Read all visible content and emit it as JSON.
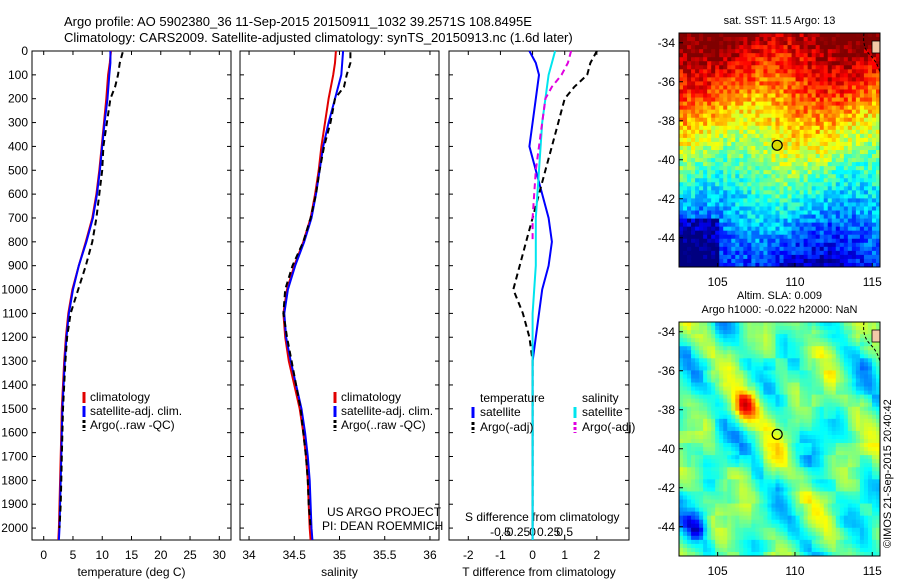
{
  "title_line1": "Argo profile: AO 5902380_36 11-Sep-2015 20150911_1032 39.2571S 108.8495E",
  "title_line2": "Climatology: CARS2009. Satellite-adjusted climatology: synTS_20150913.nc (1.6d later)",
  "colors": {
    "climatology": "#e00000",
    "satellite": "#0000ff",
    "argo": "#000000",
    "cyan": "#00e5ee",
    "magenta": "#e000e0"
  },
  "chart_data": [
    {
      "type": "line",
      "xlabel": "temperature (deg C)",
      "ylabel": "",
      "xlim": [
        -2,
        32
      ],
      "ylim": [
        2050,
        0
      ],
      "xticks": [
        "0",
        "5",
        "10",
        "15",
        "20",
        "25",
        "30"
      ],
      "yticks": [
        "0",
        "100",
        "200",
        "300",
        "400",
        "500",
        "600",
        "700",
        "800",
        "900",
        "1000",
        "1100",
        "1200",
        "1300",
        "1400",
        "1500",
        "1600",
        "1700",
        "1800",
        "1900",
        "2000"
      ],
      "legend": [
        "climatology",
        "satellite-adj. clim.",
        "Argo(..raw -QC)"
      ],
      "legend_position": "lower-center",
      "series": [
        {
          "name": "climatology",
          "style": "solid",
          "color": "#e00000",
          "x": [
            11.5,
            11.3,
            11.0,
            10.7,
            10.3,
            9.9,
            9.5,
            9.0,
            8.3,
            7.2,
            6.0,
            4.9,
            4.2,
            3.8,
            3.5,
            3.3,
            3.1,
            3.0,
            2.9,
            2.8,
            2.7,
            2.6,
            2.5
          ],
          "y": [
            0,
            50,
            100,
            200,
            300,
            400,
            500,
            600,
            700,
            800,
            900,
            1000,
            1100,
            1200,
            1300,
            1400,
            1500,
            1600,
            1700,
            1800,
            1900,
            2000,
            2050
          ]
        },
        {
          "name": "satellite-adj. clim.",
          "style": "solid",
          "color": "#0000ff",
          "x": [
            11.4,
            11.4,
            11.2,
            10.9,
            10.4,
            10.0,
            9.6,
            9.1,
            8.4,
            7.3,
            6.0,
            5.0,
            4.3,
            3.9,
            3.6,
            3.4,
            3.2,
            3.1,
            3.0,
            2.9,
            2.8,
            2.7,
            2.6
          ],
          "y": [
            0,
            50,
            100,
            200,
            300,
            400,
            500,
            600,
            700,
            800,
            900,
            1000,
            1100,
            1200,
            1300,
            1400,
            1500,
            1600,
            1700,
            1800,
            1900,
            2000,
            2050
          ]
        },
        {
          "name": "Argo(..raw -QC)",
          "style": "dashed",
          "color": "#000000",
          "x": [
            13.5,
            13.0,
            12.7,
            12.2,
            11.4,
            10.8,
            10.2,
            10.0,
            9.5,
            9.0,
            8.3,
            7.2,
            5.9,
            4.6,
            4.0,
            3.7,
            3.5,
            3.3,
            3.2,
            3.1,
            3.0,
            2.9,
            2.8,
            2.7
          ],
          "y": [
            5,
            50,
            100,
            150,
            200,
            300,
            400,
            500,
            600,
            700,
            800,
            900,
            1000,
            1100,
            1200,
            1300,
            1400,
            1500,
            1600,
            1700,
            1800,
            1900,
            1950,
            2000
          ]
        }
      ]
    },
    {
      "type": "line",
      "xlabel": "salinity",
      "xlim": [
        33.9,
        36.1
      ],
      "ylim": [
        2050,
        0
      ],
      "xticks": [
        "34",
        "34.5",
        "35",
        "35.5",
        "36"
      ],
      "legend": [
        "climatology",
        "satellite-adj. clim.",
        "Argo(..raw -QC)"
      ],
      "legend_position": "lower-right",
      "annotations": [
        "US ARGO PROJECT",
        "PI: DEAN ROEMMICH"
      ],
      "series": [
        {
          "name": "climatology",
          "style": "solid",
          "color": "#e00000",
          "x": [
            34.96,
            34.95,
            34.93,
            34.88,
            34.84,
            34.8,
            34.77,
            34.73,
            34.68,
            34.6,
            34.5,
            34.42,
            34.38,
            34.4,
            34.44,
            34.5,
            34.56,
            34.6,
            34.63,
            34.65,
            34.66,
            34.67,
            34.68
          ],
          "y": [
            0,
            50,
            100,
            200,
            300,
            400,
            500,
            600,
            700,
            800,
            900,
            1000,
            1100,
            1200,
            1300,
            1400,
            1500,
            1600,
            1700,
            1800,
            1900,
            2000,
            2050
          ]
        },
        {
          "name": "satellite-adj. clim.",
          "style": "solid",
          "color": "#0000ff",
          "x": [
            35.04,
            35.03,
            35.02,
            34.95,
            34.88,
            34.82,
            34.78,
            34.74,
            34.69,
            34.61,
            34.51,
            34.43,
            34.39,
            34.41,
            34.46,
            34.52,
            34.58,
            34.62,
            34.65,
            34.67,
            34.68,
            34.69,
            34.7
          ],
          "y": [
            0,
            50,
            100,
            200,
            300,
            400,
            500,
            600,
            700,
            800,
            900,
            1000,
            1100,
            1200,
            1300,
            1400,
            1500,
            1600,
            1700,
            1800,
            1900,
            2000,
            2050
          ]
        },
        {
          "name": "Argo(..raw -QC)",
          "style": "dashed",
          "color": "#000000",
          "x": [
            35.12,
            35.12,
            35.08,
            35.05,
            34.95,
            34.9,
            34.83,
            34.78,
            34.74,
            34.68,
            34.6,
            34.48,
            34.4,
            34.38,
            34.42,
            34.47,
            34.52,
            34.57,
            34.6,
            34.63,
            34.65,
            34.66,
            34.67,
            34.68
          ],
          "y": [
            5,
            50,
            100,
            150,
            200,
            300,
            400,
            500,
            600,
            700,
            800,
            900,
            1000,
            1100,
            1200,
            1300,
            1400,
            1500,
            1600,
            1700,
            1800,
            1900,
            1950,
            2000
          ]
        }
      ]
    },
    {
      "type": "line",
      "xlabel": "T difference from climatology",
      "x2label": "S difference from climatology",
      "xlim": [
        -2.6,
        3.0
      ],
      "ylim": [
        2050,
        0
      ],
      "xticks": [
        "-2",
        "-1",
        "0",
        "1",
        "2"
      ],
      "x2ticks": [
        "-0.5",
        "-0.25",
        "0",
        "0.25",
        "0.5"
      ],
      "legend_headers": [
        "temperature",
        "salinity"
      ],
      "legend": [
        "satellite",
        "Argo(-adj)",
        "satellite",
        "Argo(-adj)"
      ],
      "legend_position": "lower-center",
      "series": [
        {
          "name": "satellite",
          "quantity": "temperature",
          "style": "solid",
          "color": "#0000ff",
          "x": [
            -0.1,
            0.1,
            0.2,
            0.1,
            0.0,
            -0.1,
            0.1,
            0.3,
            0.5,
            0.6,
            0.5,
            0.3,
            0.2,
            0.1,
            0.0,
            0.0,
            0.0,
            0.0,
            0.0,
            0.0,
            0.0,
            0.0,
            0.0
          ],
          "y": [
            0,
            50,
            100,
            200,
            300,
            400,
            500,
            600,
            700,
            800,
            900,
            1000,
            1100,
            1200,
            1300,
            1400,
            1500,
            1600,
            1700,
            1800,
            1900,
            2000,
            2050
          ]
        },
        {
          "name": "Argo(-adj)",
          "quantity": "temperature",
          "style": "dashed",
          "color": "#000000",
          "x": [
            2.0,
            1.8,
            1.7,
            1.3,
            1.0,
            0.8,
            0.6,
            0.4,
            0.2,
            0.0,
            -0.2,
            -0.4,
            -0.6,
            -0.3,
            -0.1,
            0.0,
            0.0,
            0.0,
            0.0,
            0.0,
            0.0,
            0.0
          ],
          "y": [
            0,
            50,
            100,
            150,
            200,
            300,
            400,
            500,
            600,
            700,
            800,
            900,
            1000,
            1100,
            1200,
            1300,
            1400,
            1500,
            1600,
            1700,
            1800,
            2000
          ]
        },
        {
          "name": "satellite",
          "quantity": "salinity",
          "style": "solid",
          "color": "#00e5ee",
          "x": [
            0.7,
            0.6,
            0.5,
            0.4,
            0.3,
            0.25,
            0.2,
            0.15,
            0.1,
            0.1,
            0.1,
            0.05,
            0.0,
            0.0,
            0.0,
            0.0,
            0.0,
            0.0,
            0.0,
            0.0,
            0.0,
            0.0,
            0.0
          ],
          "y": [
            0,
            50,
            100,
            200,
            300,
            400,
            500,
            600,
            700,
            800,
            900,
            1000,
            1100,
            1200,
            1300,
            1400,
            1500,
            1600,
            1700,
            1800,
            1900,
            2000,
            2050
          ]
        },
        {
          "name": "Argo(-adj)",
          "quantity": "salinity",
          "style": "dashed",
          "color": "#e000e0",
          "x": [
            1.2,
            1.1,
            0.9,
            0.6,
            0.4,
            0.3,
            0.2,
            0.1,
            0.05,
            0.0,
            0.0
          ],
          "y": [
            0,
            50,
            100,
            150,
            200,
            300,
            400,
            500,
            600,
            700,
            800
          ]
        }
      ]
    }
  ],
  "maps": [
    {
      "title": "sat. SST: 11.5 Argo: 13",
      "extra_lines": [],
      "xticks": [
        "105",
        "110",
        "115"
      ],
      "yticks": [
        "-34",
        "-36",
        "-38",
        "-40",
        "-42",
        "-44"
      ],
      "lon_range": [
        102.5,
        115.5
      ],
      "lat_range": [
        -45.5,
        -33.5
      ],
      "float_position": {
        "lon": 108.85,
        "lat": -39.26
      },
      "colormap": "jet"
    },
    {
      "title": "Altim. SLA: 0.009",
      "extra_lines": [
        "Argo h1000: -0.022 h2000: NaN"
      ],
      "xticks": [
        "105",
        "110",
        "115"
      ],
      "yticks": [
        "-34",
        "-36",
        "-38",
        "-40",
        "-42",
        "-44"
      ],
      "lon_range": [
        102.5,
        115.5
      ],
      "lat_range": [
        -45.5,
        -33.5
      ],
      "float_position": {
        "lon": 108.85,
        "lat": -39.26
      },
      "colormap": "jet"
    }
  ],
  "credit": "©IMOS 21-Sep-2015 20:40:42"
}
